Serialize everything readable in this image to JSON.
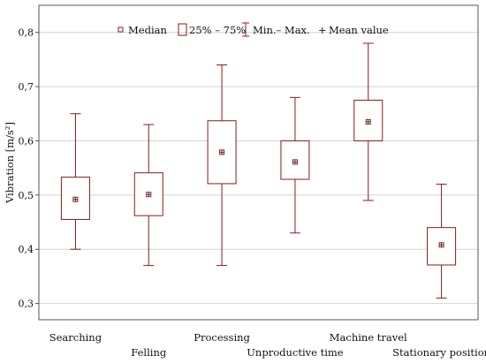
{
  "chart_data": {
    "type": "boxplot",
    "ylabel": "Vibration [m/s²]",
    "ylim": [
      0.27,
      0.85
    ],
    "yticks": [
      "0,3",
      "0,4",
      "0,5",
      "0,6",
      "0,7",
      "0,8"
    ],
    "ytick_values": [
      0.3,
      0.4,
      0.5,
      0.6,
      0.7,
      0.8
    ],
    "grid": true,
    "legend_position": "top",
    "legend": {
      "median": "Median",
      "box": "25% – 75%",
      "whisker": "Min.– Max.",
      "mean": "Mean value"
    },
    "categories": [
      "Searching",
      "Felling",
      "Processing",
      "Unproductive time",
      "Machine travel",
      "Stationary position"
    ],
    "boxes": [
      {
        "category": "Searching",
        "min": 0.4,
        "q1": 0.455,
        "median": 0.492,
        "mean": 0.492,
        "q3": 0.533,
        "max": 0.65
      },
      {
        "category": "Felling",
        "min": 0.37,
        "q1": 0.462,
        "median": 0.501,
        "mean": 0.501,
        "q3": 0.541,
        "max": 0.63
      },
      {
        "category": "Processing",
        "min": 0.37,
        "q1": 0.521,
        "median": 0.579,
        "mean": 0.579,
        "q3": 0.637,
        "max": 0.74
      },
      {
        "category": "Unproductive time",
        "min": 0.43,
        "q1": 0.529,
        "median": 0.561,
        "mean": 0.561,
        "q3": 0.6,
        "max": 0.68
      },
      {
        "category": "Machine travel",
        "min": 0.49,
        "q1": 0.6,
        "median": 0.635,
        "mean": 0.635,
        "q3": 0.675,
        "max": 0.78
      },
      {
        "category": "Stationary position",
        "min": 0.31,
        "q1": 0.371,
        "median": 0.408,
        "mean": 0.408,
        "q3": 0.44,
        "max": 0.52
      }
    ],
    "colors": {
      "box": "#8b1a1a",
      "grid": "#d4d4d4",
      "axis": "#555555",
      "text": "#111111"
    }
  }
}
